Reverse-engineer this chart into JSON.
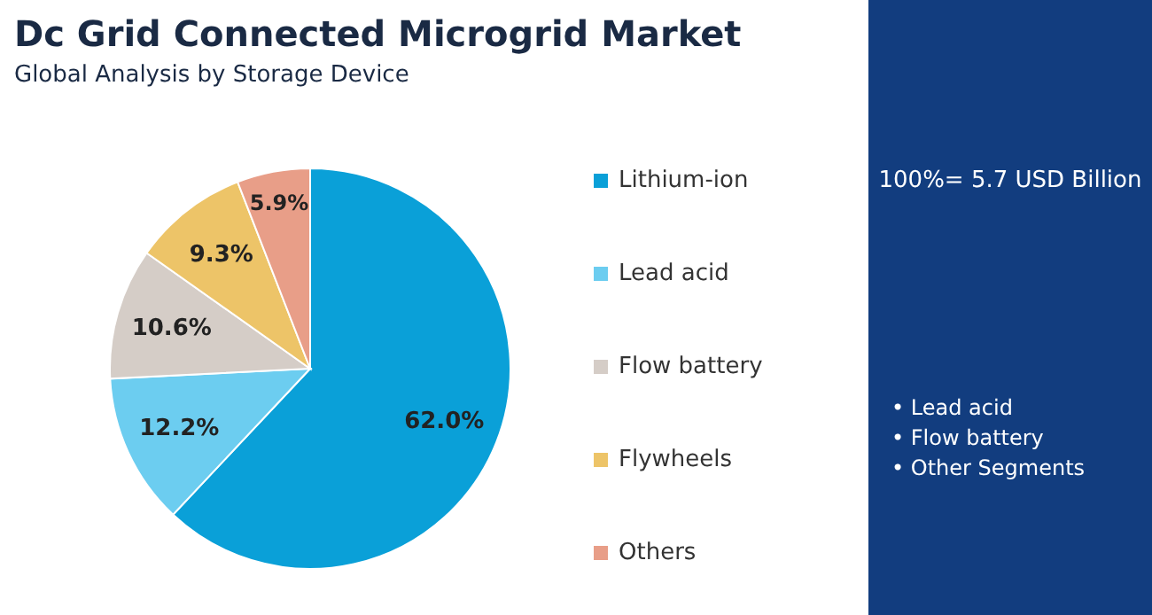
{
  "chart_data": {
    "type": "pie",
    "title": "Dc Grid Connected Microgrid Market",
    "subtitle": "Global Analysis by Storage Device",
    "categories": [
      "Lithium-ion",
      "Lead acid",
      "Flow battery",
      "Flywheels",
      "Others"
    ],
    "values": [
      62.0,
      12.2,
      10.6,
      9.3,
      5.9
    ],
    "colors": [
      "#0aa0d8",
      "#6ccdf0",
      "#d5cdc7",
      "#edc468",
      "#e89e88"
    ],
    "value_labels": [
      "62.0%",
      "12.2%",
      "10.6%",
      "9.3%",
      "5.9%"
    ],
    "legend": "right",
    "annotations": [
      "100%= 5.7 USD Billion",
      "• Lead acid",
      "• Flow battery",
      "• Other Segments"
    ]
  }
}
